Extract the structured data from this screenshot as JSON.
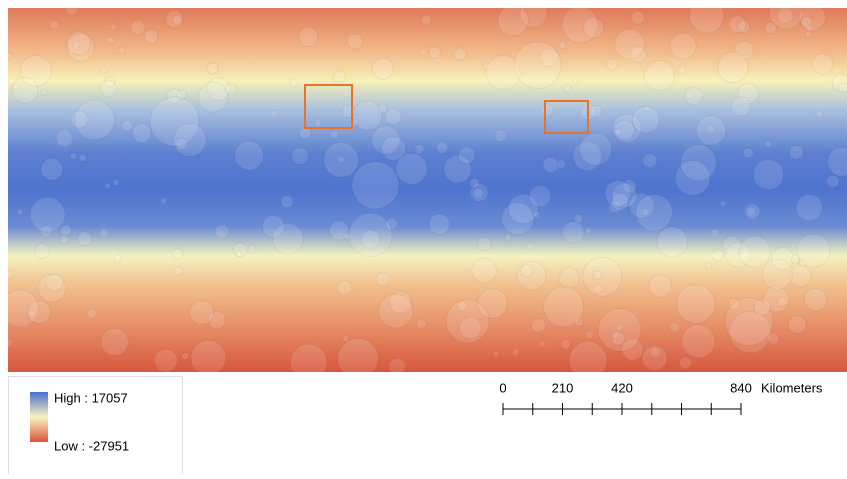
{
  "legend": {
    "high": "High : 17057",
    "low": "Low : -27951"
  },
  "scale_bar": {
    "ticks": [
      0,
      210,
      420,
      840
    ],
    "unit": "Kilometers"
  }
}
